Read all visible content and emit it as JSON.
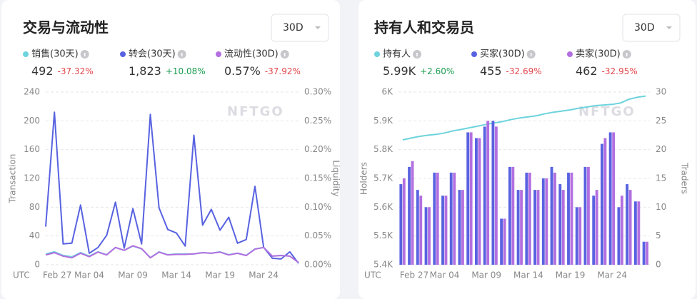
{
  "chart_data": [
    {
      "type": "line",
      "title": "交易与流动性",
      "dropdown": "30D",
      "watermark": "NFTGO",
      "xlabel": "UTC",
      "ylabel": "Transaction",
      "y2label": "Liquidity",
      "categories": [
        "Feb 27",
        null,
        null,
        null,
        null,
        "Mar 04",
        null,
        null,
        null,
        null,
        "Mar 09",
        null,
        null,
        null,
        null,
        "Mar 14",
        null,
        null,
        null,
        null,
        "Mar 19",
        null,
        null,
        null,
        null,
        "Mar 24",
        null,
        null,
        null,
        null
      ],
      "ylim": [
        0,
        240
      ],
      "yticks": [
        0,
        40,
        80,
        120,
        160,
        200,
        240
      ],
      "y2lim": [
        0,
        0.3
      ],
      "y2ticks": [
        {
          "value": 0,
          "label": "0.00%"
        },
        {
          "value": 0.05,
          "label": "0.05%"
        },
        {
          "value": 0.1,
          "label": "0.10%"
        },
        {
          "value": 0.15,
          "label": "0.15%"
        },
        {
          "value": 0.2,
          "label": "0.20%"
        },
        {
          "value": 0.25,
          "label": "0.25%"
        },
        {
          "value": 0.3,
          "label": "0.30%"
        }
      ],
      "grid": true,
      "series": [
        {
          "name": "销售(30天)",
          "summary": "492",
          "change": "-37.32%",
          "color": "#6dd3dc",
          "values": [
            15,
            18,
            13,
            11,
            17,
            12,
            18,
            14,
            24,
            20,
            26,
            22,
            10,
            18,
            14,
            15,
            15,
            15,
            17,
            16,
            18,
            14,
            16,
            13,
            22,
            24,
            12,
            13,
            12,
            3
          ]
        },
        {
          "name": "转会(30天)",
          "summary": "1,823",
          "change": "+10.08%",
          "color": "#5862e0",
          "values": [
            53,
            212,
            29,
            30,
            83,
            16,
            24,
            41,
            87,
            23,
            78,
            29,
            209,
            79,
            49,
            44,
            26,
            180,
            55,
            77,
            48,
            66,
            30,
            35,
            109,
            24,
            9,
            8,
            18,
            2
          ]
        },
        {
          "name": "流动性(30D)",
          "summary": "0.57%",
          "change": "-37.92%",
          "color": "#b36fe0",
          "axis": "y2",
          "values": [
            0.017,
            0.021,
            0.015,
            0.012,
            0.02,
            0.014,
            0.022,
            0.017,
            0.03,
            0.025,
            0.033,
            0.028,
            0.012,
            0.022,
            0.017,
            0.018,
            0.018,
            0.019,
            0.021,
            0.02,
            0.022,
            0.017,
            0.02,
            0.016,
            0.027,
            0.03,
            0.015,
            0.016,
            0.015,
            0.004
          ]
        }
      ]
    },
    {
      "type": "bar",
      "title": "持有人和交易员",
      "dropdown": "30D",
      "watermark": "NFTGO",
      "xlabel": "UTC",
      "ylabel": "Holders",
      "y2label": "Traders",
      "categories": [
        "Feb 27",
        null,
        null,
        null,
        null,
        "Mar 04",
        null,
        null,
        null,
        null,
        "Mar 09",
        null,
        null,
        null,
        null,
        "Mar 14",
        null,
        null,
        null,
        null,
        "Mar 19",
        null,
        null,
        null,
        null,
        "Mar 24",
        null,
        null,
        null,
        null
      ],
      "ylim": [
        5400,
        6000
      ],
      "yticks": [
        {
          "value": 5400,
          "label": "5.4K"
        },
        {
          "value": 5500,
          "label": "5.5K"
        },
        {
          "value": 5600,
          "label": "5.6K"
        },
        {
          "value": 5700,
          "label": "5.7K"
        },
        {
          "value": 5800,
          "label": "5.8K"
        },
        {
          "value": 5900,
          "label": "5.9K"
        },
        {
          "value": 6000,
          "label": "6K"
        }
      ],
      "y2lim": [
        0,
        30
      ],
      "y2ticks": [
        0,
        5,
        10,
        15,
        20,
        25,
        30
      ],
      "grid": true,
      "series": [
        {
          "name": "持有人",
          "summary": "5.99K",
          "change": "+2.60%",
          "color": "#6dd3dc",
          "type": "line",
          "values": [
            5834,
            5840,
            5846,
            5850,
            5853,
            5858,
            5865,
            5870,
            5876,
            5882,
            5888,
            5893,
            5898,
            5905,
            5910,
            5914,
            5918,
            5925,
            5930,
            5934,
            5938,
            5944,
            5948,
            5953,
            5955,
            5957,
            5962,
            5975,
            5982,
            5986
          ]
        },
        {
          "name": "买家(30D)",
          "summary": "455",
          "change": "-32.69%",
          "color": "#5862e0",
          "axis": "y2",
          "values": [
            14,
            17,
            13,
            10,
            16,
            12,
            16,
            13,
            23,
            22,
            24,
            25,
            8,
            17,
            13,
            16,
            13,
            15,
            17,
            14,
            16,
            10,
            17,
            12,
            21,
            23,
            10,
            14,
            11,
            4
          ]
        },
        {
          "name": "卖家(30D)",
          "summary": "462",
          "change": "-32.95%",
          "color": "#b36fe0",
          "axis": "y2",
          "values": [
            15,
            18,
            12,
            10,
            16,
            12,
            16,
            13,
            23,
            22,
            25,
            24,
            8,
            17,
            13,
            16,
            13,
            15,
            16,
            13,
            16,
            10,
            17,
            13,
            22,
            23,
            12,
            13,
            11,
            4
          ]
        }
      ]
    }
  ]
}
